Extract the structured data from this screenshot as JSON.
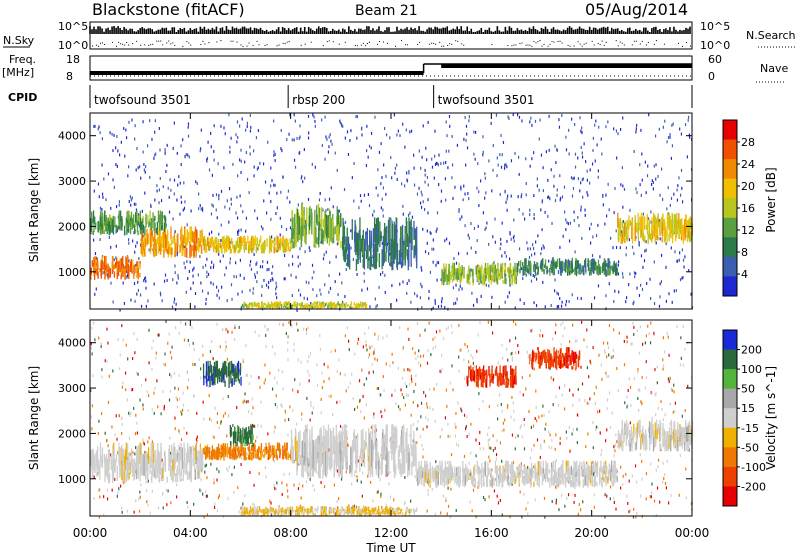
{
  "header": {
    "station": "Blackstone (fitACF)",
    "beam": "Beam 21",
    "date": "05/Aug/2014"
  },
  "top_panels": {
    "nsky_label": "N.Sky",
    "nsky_ticks": [
      "10^5",
      "10^0"
    ],
    "nsearch_label": "N.Search",
    "freq_label": "Freq.",
    "freq_unit": "[MHz]",
    "freq_ticks": [
      "18",
      "8"
    ],
    "nave_label": "Nave",
    "nave_ticks": [
      "60",
      "0"
    ],
    "cpid_label": "CPID",
    "cpid_segments": [
      {
        "name": "twofsound 3501",
        "start_hour": 0,
        "end_hour": 7.9
      },
      {
        "name": "rbsp 200",
        "start_hour": 7.9,
        "end_hour": 13.7
      },
      {
        "name": "twofsound 3501",
        "start_hour": 13.7,
        "end_hour": 24
      }
    ],
    "freq_step_hour": 13.3
  },
  "colors": {
    "power_scale": [
      "#1e28d2",
      "#3a5fb0",
      "#2c7a46",
      "#5aa040",
      "#b8c61e",
      "#f0c000",
      "#f08a00",
      "#f05000",
      "#e60000"
    ],
    "velocity_scale": [
      "#1a2ad6",
      "#2a6a3a",
      "#52b43a",
      "#a8a8a8",
      "#cfcfcf",
      "#f0b000",
      "#f07800",
      "#f04000",
      "#e60000"
    ]
  },
  "chart_data": [
    {
      "type": "heatmap",
      "title": "",
      "xlabel": "Time UT",
      "ylabel": "Slant Range [km]",
      "x_ticks": [
        "00:00",
        "04:00",
        "08:00",
        "12:00",
        "16:00",
        "20:00",
        "00:00"
      ],
      "y_ticks": [
        "1000",
        "2000",
        "3000",
        "4000"
      ],
      "xlim_hours": [
        0,
        24
      ],
      "ylim_km": [
        180,
        4500
      ],
      "colorbar": {
        "label": "Power [dB]",
        "ticks": [
          "4",
          "8",
          "12",
          "16",
          "20",
          "24",
          "28"
        ],
        "range": [
          0,
          30
        ]
      },
      "bands": [
        {
          "t0": 0.0,
          "t1": 2.0,
          "r0": 820,
          "r1": 1350,
          "level": 24
        },
        {
          "t0": 2.0,
          "t1": 4.5,
          "r0": 1300,
          "r1": 2000,
          "level": 22
        },
        {
          "t0": 0.0,
          "t1": 3.0,
          "r0": 1800,
          "r1": 2350,
          "level": 10
        },
        {
          "t0": 4.5,
          "t1": 8.0,
          "r0": 1400,
          "r1": 1800,
          "level": 18
        },
        {
          "t0": 8.0,
          "t1": 10.0,
          "r0": 1500,
          "r1": 2500,
          "level": 12
        },
        {
          "t0": 10.0,
          "t1": 13.0,
          "r0": 1000,
          "r1": 2200,
          "level": 6
        },
        {
          "t0": 14.0,
          "t1": 17.0,
          "r0": 700,
          "r1": 1200,
          "level": 14
        },
        {
          "t0": 17.0,
          "t1": 21.0,
          "r0": 900,
          "r1": 1300,
          "level": 8
        },
        {
          "t0": 21.0,
          "t1": 24.0,
          "r0": 1600,
          "r1": 2300,
          "level": 18
        },
        {
          "t0": 6.0,
          "t1": 11.0,
          "r0": 180,
          "r1": 350,
          "level": 16
        }
      ]
    },
    {
      "type": "heatmap",
      "title": "",
      "xlabel": "Time UT",
      "ylabel": "Slant Range [km]",
      "x_ticks": [
        "00:00",
        "04:00",
        "08:00",
        "12:00",
        "16:00",
        "20:00",
        "00:00"
      ],
      "y_ticks": [
        "1000",
        "2000",
        "3000",
        "4000"
      ],
      "xlim_hours": [
        0,
        24
      ],
      "ylim_km": [
        180,
        4500
      ],
      "colorbar": {
        "label": "Velocity [m s^-1]",
        "ticks": [
          "200",
          "100",
          "50",
          "15",
          "-15",
          "-50",
          "-100",
          "-200"
        ],
        "range": [
          -250,
          250
        ]
      },
      "bands": [
        {
          "t0": 0.0,
          "t1": 4.5,
          "r0": 900,
          "r1": 1800,
          "level": 0
        },
        {
          "t0": 4.5,
          "t1": 8.0,
          "r0": 1400,
          "r1": 1800,
          "level": -120
        },
        {
          "t0": 8.0,
          "t1": 13.0,
          "r0": 1000,
          "r1": 2200,
          "level": 5
        },
        {
          "t0": 13.0,
          "t1": 21.0,
          "r0": 800,
          "r1": 1400,
          "level": 0
        },
        {
          "t0": 21.0,
          "t1": 24.0,
          "r0": 1600,
          "r1": 2300,
          "level": 0
        },
        {
          "t0": 5.5,
          "t1": 6.5,
          "r0": 1700,
          "r1": 2200,
          "level": 180
        },
        {
          "t0": 4.5,
          "t1": 6.0,
          "r0": 3000,
          "r1": 3600,
          "level": 200
        },
        {
          "t0": 15.0,
          "t1": 17.0,
          "r0": 3000,
          "r1": 3500,
          "level": -200
        },
        {
          "t0": 17.5,
          "t1": 19.5,
          "r0": 3400,
          "r1": 3900,
          "level": -200
        },
        {
          "t0": 6.0,
          "t1": 13.0,
          "r0": 180,
          "r1": 400,
          "level": -40
        }
      ]
    }
  ]
}
